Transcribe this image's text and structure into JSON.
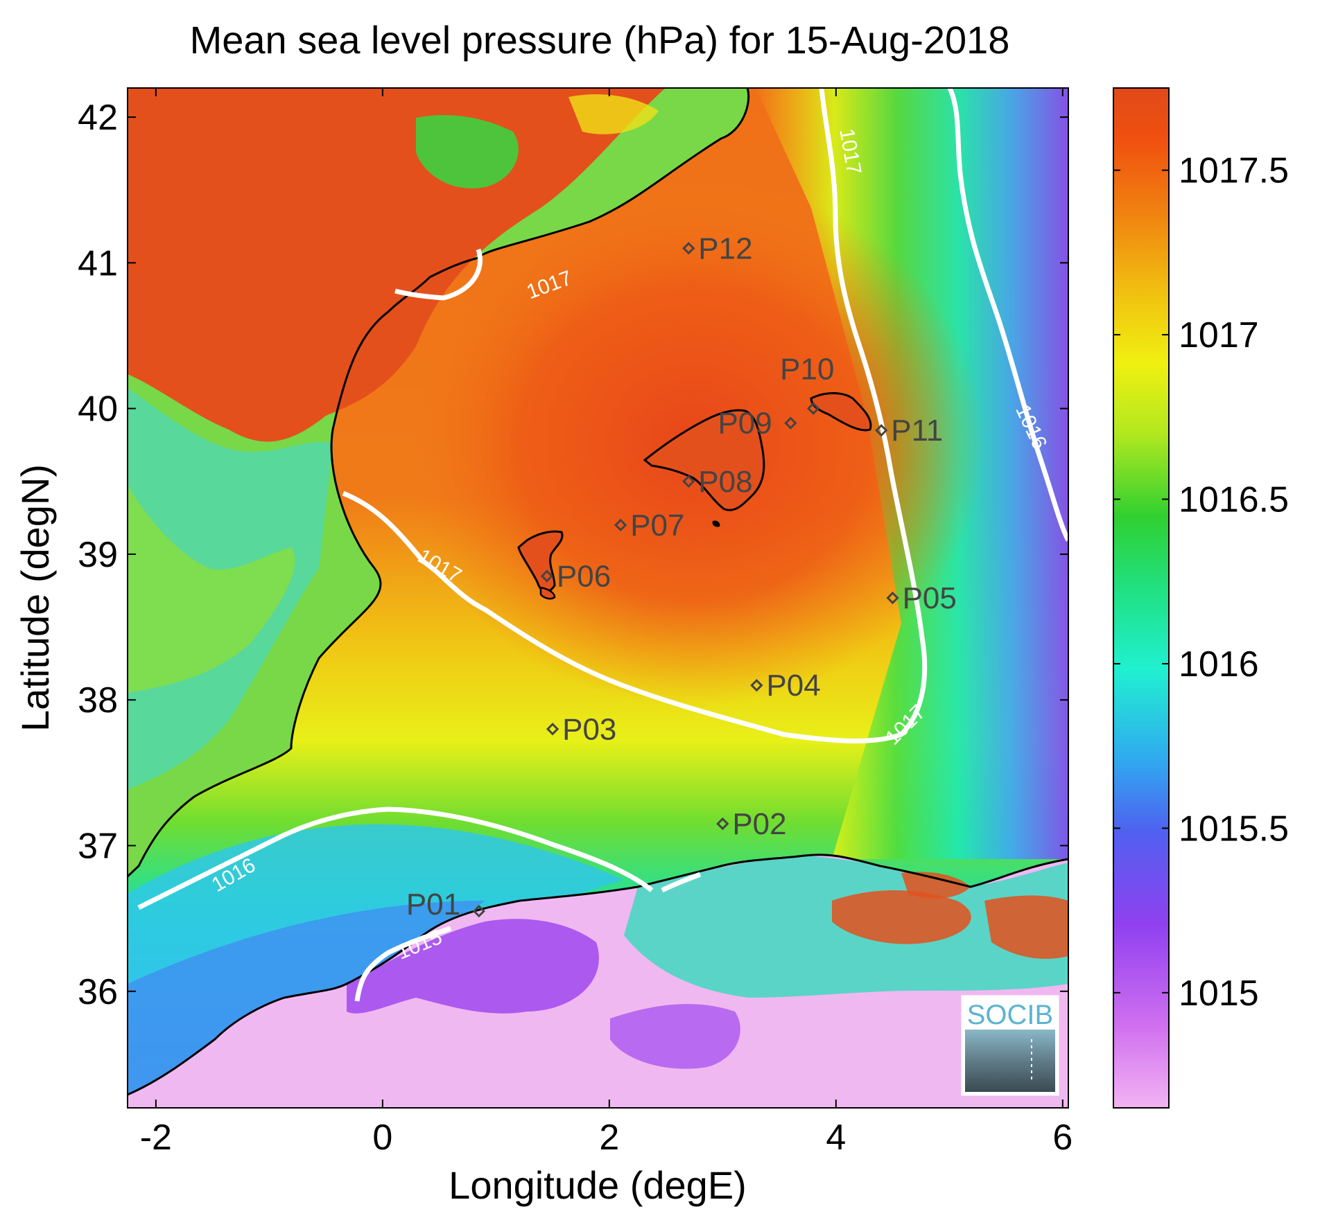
{
  "chart_data": {
    "type": "heatmap",
    "title": "Mean sea level pressure (hPa) for 15-Aug-2018",
    "xlabel": "Longitude (degE)",
    "ylabel": "Latitude (degN)",
    "xlim": [
      -2.25,
      6.05
    ],
    "ylim": [
      35.2,
      42.2
    ],
    "x_ticks": [
      -2,
      0,
      2,
      4,
      6
    ],
    "y_ticks": [
      36,
      37,
      38,
      39,
      40,
      41,
      42
    ],
    "x_tick_labels": [
      "-2",
      "0",
      "2",
      "4",
      "6"
    ],
    "y_tick_labels": [
      "36",
      "37",
      "38",
      "39",
      "40",
      "41",
      "42"
    ],
    "colorbar": {
      "range": [
        1014.65,
        1017.75
      ],
      "ticks": [
        1015,
        1015.5,
        1016,
        1016.5,
        1017,
        1017.5
      ],
      "tick_labels": [
        "1015",
        "1015.5",
        "1016",
        "1016.5",
        "1017",
        "1017.5"
      ],
      "colormap": [
        "#f2b4f2",
        "#d070f0",
        "#9040f0",
        "#4070f0",
        "#30c0f0",
        "#20f0d0",
        "#20e080",
        "#30d030",
        "#90e020",
        "#f0f010",
        "#f0c010",
        "#f08010",
        "#f05010",
        "#e04a18"
      ]
    },
    "contours": [
      {
        "level": "1015",
        "label": "1015"
      },
      {
        "level": "1016",
        "label": "1016"
      },
      {
        "level": "1017",
        "label": "1017"
      }
    ],
    "stations": [
      {
        "name": "P01",
        "lon": 0.85,
        "lat": 36.55
      },
      {
        "name": "P02",
        "lon": 3.0,
        "lat": 37.15
      },
      {
        "name": "P03",
        "lon": 1.5,
        "lat": 37.8
      },
      {
        "name": "P04",
        "lon": 3.3,
        "lat": 38.1
      },
      {
        "name": "P05",
        "lon": 4.5,
        "lat": 38.7
      },
      {
        "name": "P06",
        "lon": 1.45,
        "lat": 38.85
      },
      {
        "name": "P07",
        "lon": 2.1,
        "lat": 39.2
      },
      {
        "name": "P08",
        "lon": 2.7,
        "lat": 39.5
      },
      {
        "name": "P09",
        "lon": 3.6,
        "lat": 39.9
      },
      {
        "name": "P10",
        "lon": 3.8,
        "lat": 40.0
      },
      {
        "name": "P11",
        "lon": 4.4,
        "lat": 39.85
      },
      {
        "name": "P12",
        "lon": 2.7,
        "lat": 41.1
      }
    ]
  },
  "logo": {
    "text": "SOCIB"
  }
}
